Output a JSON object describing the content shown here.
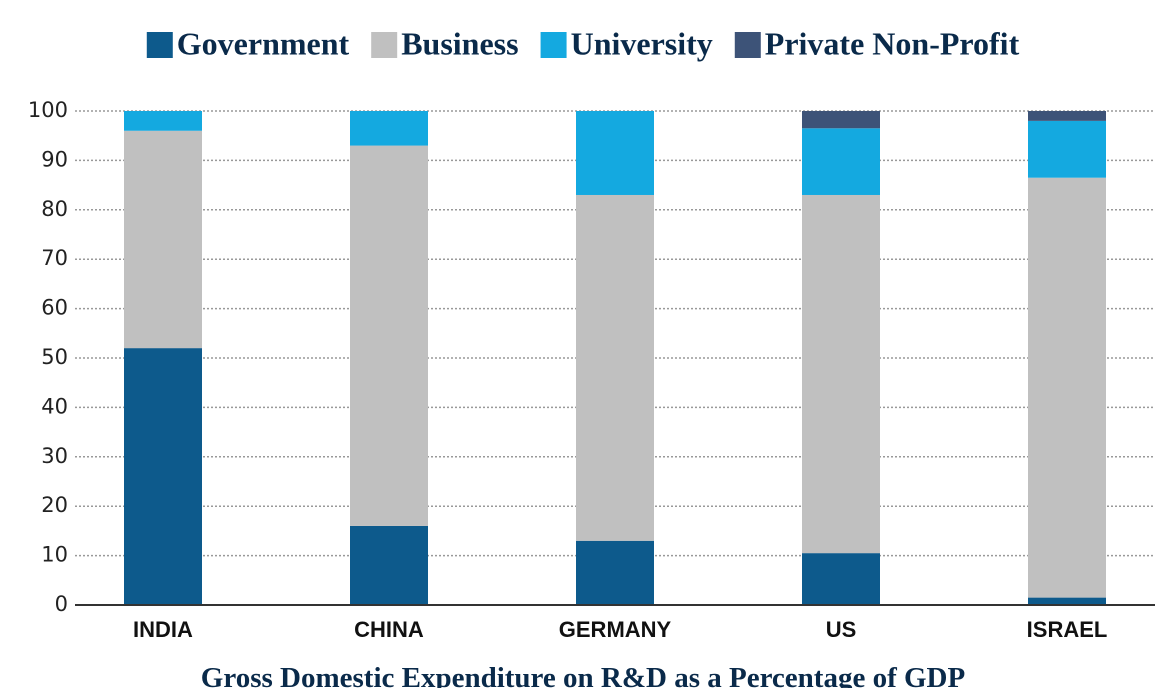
{
  "chart_data": {
    "type": "stacked_bar",
    "title": "Gross Domestic Expenditure on R&D as a Percentage of GDP",
    "categories": [
      "INDIA",
      "CHINA",
      "GERMANY",
      "US",
      "ISRAEL"
    ],
    "series": [
      {
        "name": "Government",
        "color": "#0d5a8c",
        "values": [
          52,
          16,
          13,
          10.5,
          1.5
        ]
      },
      {
        "name": "Business",
        "color": "#c0c0c0",
        "values": [
          44,
          77,
          70,
          72.5,
          85
        ]
      },
      {
        "name": "University",
        "color": "#14a9e0",
        "values": [
          4,
          7,
          17,
          13.5,
          11.5
        ]
      },
      {
        "name": "Private Non-Profit",
        "color": "#3d5378",
        "values": [
          0,
          0,
          0,
          3.5,
          2
        ]
      }
    ],
    "ylim": [
      0,
      100
    ],
    "yticks": [
      0,
      10,
      20,
      30,
      40,
      50,
      60,
      70,
      80,
      90,
      100
    ],
    "grid": true
  }
}
